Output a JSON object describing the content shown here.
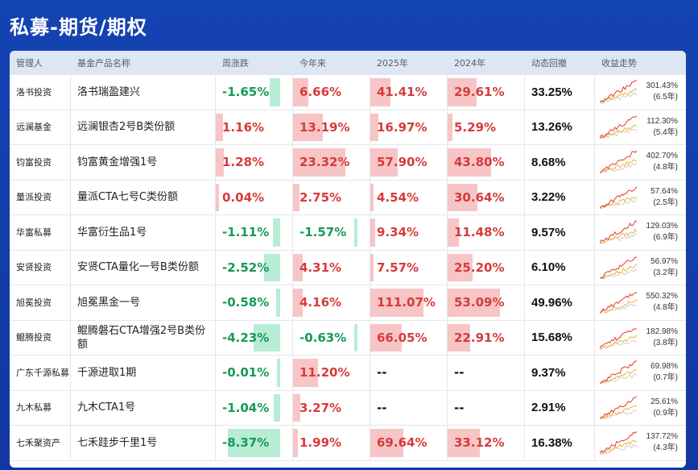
{
  "page": {
    "title": "私募-期货/期权"
  },
  "colors": {
    "positive": "#d63b3b",
    "negative": "#159a56",
    "pos_bar": "#f7c5c5",
    "neg_bar": "#b8ecd5",
    "header_bg": "#1443b3"
  },
  "table": {
    "headers": [
      "管理人",
      "基金产品名称",
      "周涨跌",
      "今年来",
      "2025年",
      "2024年",
      "动态回撤",
      "收益走势"
    ],
    "rows": [
      {
        "manager": "洛书投资",
        "product": "洛书瑞盈建兴",
        "week": "-1.65%",
        "week_num": -1.65,
        "ytd": "6.66%",
        "ytd_num": 6.66,
        "y2025": "41.41%",
        "y2025_num": 41.41,
        "y2024": "29.61%",
        "y2024_num": 29.61,
        "drawdown": "33.25%",
        "trend_return": "301.43%",
        "trend_period": "(6.5年)"
      },
      {
        "manager": "远澜基金",
        "product": "远澜银杏2号B类份额",
        "week": "1.16%",
        "week_num": 1.16,
        "ytd": "13.19%",
        "ytd_num": 13.19,
        "y2025": "16.97%",
        "y2025_num": 16.97,
        "y2024": "5.29%",
        "y2024_num": 5.29,
        "drawdown": "13.26%",
        "trend_return": "112.30%",
        "trend_period": "(5.4年)"
      },
      {
        "manager": "钧富投资",
        "product": "钧富黄金增强1号",
        "week": "1.28%",
        "week_num": 1.28,
        "ytd": "23.32%",
        "ytd_num": 23.32,
        "y2025": "57.90%",
        "y2025_num": 57.9,
        "y2024": "43.80%",
        "y2024_num": 43.8,
        "drawdown": "8.68%",
        "trend_return": "402.70%",
        "trend_period": "(4.8年)"
      },
      {
        "manager": "量派投资",
        "product": "量派CTA七号C类份额",
        "week": "0.04%",
        "week_num": 0.04,
        "ytd": "2.75%",
        "ytd_num": 2.75,
        "y2025": "4.54%",
        "y2025_num": 4.54,
        "y2024": "30.64%",
        "y2024_num": 30.64,
        "drawdown": "3.22%",
        "trend_return": "57.64%",
        "trend_period": "(2.5年)"
      },
      {
        "manager": "华富私募",
        "product": "华富衍生品1号",
        "week": "-1.11%",
        "week_num": -1.11,
        "ytd": "-1.57%",
        "ytd_num": -1.57,
        "y2025": "9.34%",
        "y2025_num": 9.34,
        "y2024": "11.48%",
        "y2024_num": 11.48,
        "drawdown": "9.57%",
        "trend_return": "129.03%",
        "trend_period": "(6.9年)"
      },
      {
        "manager": "安贤投资",
        "product": "安贤CTA量化一号B类份额",
        "week": "-2.52%",
        "week_num": -2.52,
        "ytd": "4.31%",
        "ytd_num": 4.31,
        "y2025": "7.57%",
        "y2025_num": 7.57,
        "y2024": "25.20%",
        "y2024_num": 25.2,
        "drawdown": "6.10%",
        "trend_return": "56.97%",
        "trend_period": "(3.2年)"
      },
      {
        "manager": "旭冕投资",
        "product": "旭冕黑金一号",
        "week": "-0.58%",
        "week_num": -0.58,
        "ytd": "4.16%",
        "ytd_num": 4.16,
        "y2025": "111.07%",
        "y2025_num": 111.07,
        "y2024": "53.09%",
        "y2024_num": 53.09,
        "drawdown": "49.96%",
        "trend_return": "550.32%",
        "trend_period": "(4.8年)"
      },
      {
        "manager": "鲲腾投资",
        "product": "鲲腾磐石CTA增强2号B类份额",
        "week": "-4.23%",
        "week_num": -4.23,
        "ytd": "-0.63%",
        "ytd_num": -0.63,
        "y2025": "66.05%",
        "y2025_num": 66.05,
        "y2024": "22.91%",
        "y2024_num": 22.91,
        "drawdown": "15.68%",
        "trend_return": "182.98%",
        "trend_period": "(3.8年)"
      },
      {
        "manager": "广东千源私募",
        "product": "千源进取1期",
        "week": "-0.01%",
        "week_num": -0.01,
        "ytd": "11.20%",
        "ytd_num": 11.2,
        "y2025": "--",
        "y2025_num": null,
        "y2024": "--",
        "y2024_num": null,
        "drawdown": "9.37%",
        "trend_return": "69.98%",
        "trend_period": "(0.7年)"
      },
      {
        "manager": "九木私募",
        "product": "九木CTA1号",
        "week": "-1.04%",
        "week_num": -1.04,
        "ytd": "3.27%",
        "ytd_num": 3.27,
        "y2025": "--",
        "y2025_num": null,
        "y2024": "--",
        "y2024_num": null,
        "drawdown": "2.91%",
        "trend_return": "25.61%",
        "trend_period": "(0.9年)"
      },
      {
        "manager": "七禾聚资产",
        "product": "七禾跬步千里1号",
        "week": "-8.37%",
        "week_num": -8.37,
        "ytd": "1.99%",
        "ytd_num": 1.99,
        "y2025": "69.64%",
        "y2025_num": 69.64,
        "y2024": "33.12%",
        "y2024_num": 33.12,
        "drawdown": "16.38%",
        "trend_return": "137.72%",
        "trend_period": "(4.3年)"
      }
    ]
  }
}
